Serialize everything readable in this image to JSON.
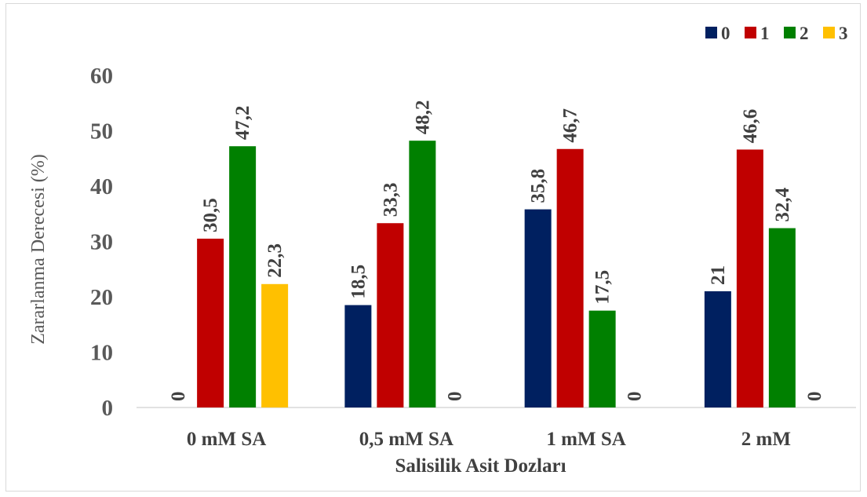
{
  "chart_data": {
    "type": "bar",
    "title": "",
    "xlabel": "Salisilik Asit Dozları",
    "ylabel": "Zararlanma Derecesi (%)",
    "ylim": [
      0,
      60
    ],
    "yticks": [
      "0",
      "10",
      "20",
      "30",
      "40",
      "50",
      "60"
    ],
    "grid": false,
    "legend_position": "top-right",
    "categories": [
      "0 mM SA",
      "0,5 mM SA",
      "1 mM SA",
      "2 mM"
    ],
    "series": [
      {
        "name": "0",
        "color": "#002060",
        "values": [
          0,
          18.5,
          35.8,
          21
        ],
        "labels": [
          "0",
          "18,5",
          "35,8",
          "21"
        ]
      },
      {
        "name": "1",
        "color": "#C00000",
        "values": [
          30.5,
          33.3,
          46.7,
          46.6
        ],
        "labels": [
          "30,5",
          "33,3",
          "46,7",
          "46,6"
        ]
      },
      {
        "name": "2",
        "color": "#008000",
        "values": [
          47.2,
          48.2,
          17.5,
          32.4
        ],
        "labels": [
          "47,2",
          "48,2",
          "17,5",
          "32,4"
        ]
      },
      {
        "name": "3",
        "color": "#FFC000",
        "values": [
          22.3,
          0,
          0,
          0
        ],
        "labels": [
          "22,3",
          "0",
          "0",
          "0"
        ]
      }
    ]
  }
}
